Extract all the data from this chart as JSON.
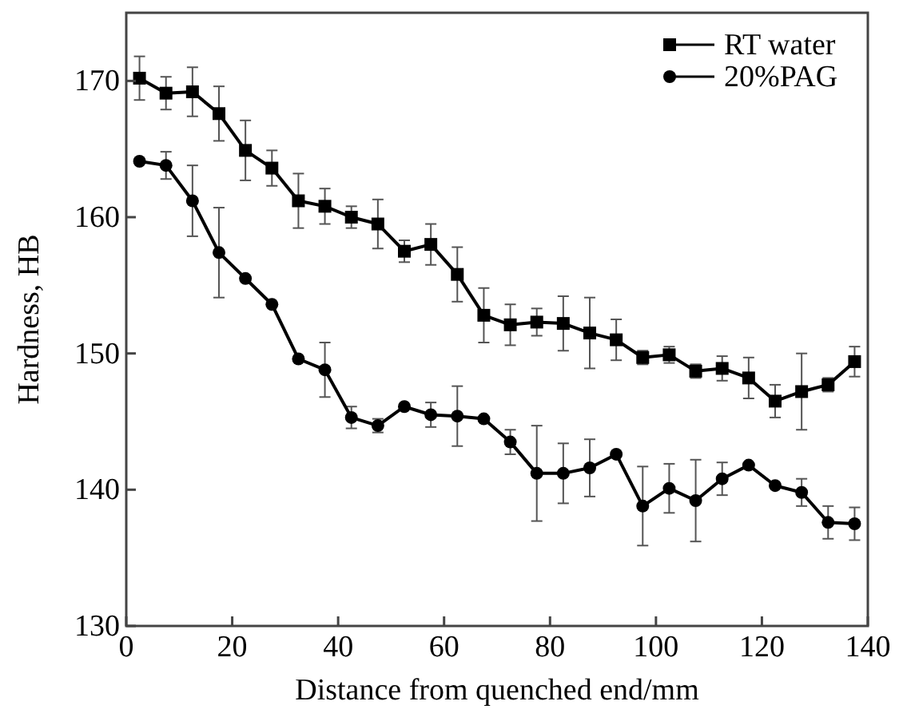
{
  "chart_data": {
    "type": "line",
    "xlabel": "Distance from quenched end/mm",
    "ylabel": "Hardness, HB",
    "x": [
      2.5,
      7.5,
      12.5,
      17.5,
      22.5,
      27.5,
      32.5,
      37.5,
      42.5,
      47.5,
      52.5,
      57.5,
      62.5,
      67.5,
      72.5,
      77.5,
      82.5,
      87.5,
      92.5,
      97.5,
      102.5,
      107.5,
      112.5,
      117.5,
      122.5,
      127.5,
      132.5,
      137.5
    ],
    "series": [
      {
        "name": "RT water",
        "color": "#000000",
        "marker": "square",
        "values": [
          170.2,
          169.1,
          169.2,
          167.6,
          164.9,
          163.6,
          161.2,
          160.8,
          160.0,
          159.5,
          157.5,
          158.0,
          155.8,
          152.8,
          152.1,
          152.3,
          152.2,
          151.5,
          151.0,
          149.7,
          149.9,
          148.7,
          148.9,
          148.2,
          146.5,
          147.2,
          147.7,
          149.4
        ],
        "errors": [
          1.6,
          1.2,
          1.8,
          2.0,
          2.2,
          1.3,
          2.0,
          1.3,
          0.8,
          1.8,
          0.8,
          1.5,
          2.0,
          2.0,
          1.5,
          1.0,
          2.0,
          2.6,
          1.5,
          0.5,
          0.6,
          0.5,
          0.9,
          1.5,
          1.2,
          2.8,
          0.5,
          1.1
        ]
      },
      {
        "name": "20%PAG",
        "color": "#000000",
        "marker": "circle",
        "values": [
          164.1,
          163.8,
          161.2,
          157.4,
          155.5,
          153.6,
          149.6,
          148.8,
          145.3,
          144.7,
          146.1,
          145.5,
          145.4,
          145.2,
          143.5,
          141.2,
          141.2,
          141.6,
          142.6,
          138.8,
          140.1,
          139.2,
          140.8,
          141.8,
          140.3,
          139.8,
          137.6,
          137.5
        ],
        "errors": [
          null,
          1.0,
          2.6,
          3.3,
          null,
          null,
          null,
          2.0,
          0.8,
          0.5,
          null,
          0.9,
          2.2,
          null,
          0.9,
          3.5,
          2.2,
          2.1,
          null,
          2.9,
          1.8,
          3.0,
          1.2,
          null,
          null,
          1.0,
          1.2,
          1.2
        ]
      }
    ],
    "xlim": [
      0,
      140
    ],
    "xticks": [
      0,
      20,
      40,
      60,
      80,
      100,
      120,
      140
    ],
    "ylim": [
      130,
      175
    ],
    "yticks": [
      130,
      140,
      150,
      160,
      170
    ],
    "legend": "top right",
    "line_style": "solid"
  }
}
